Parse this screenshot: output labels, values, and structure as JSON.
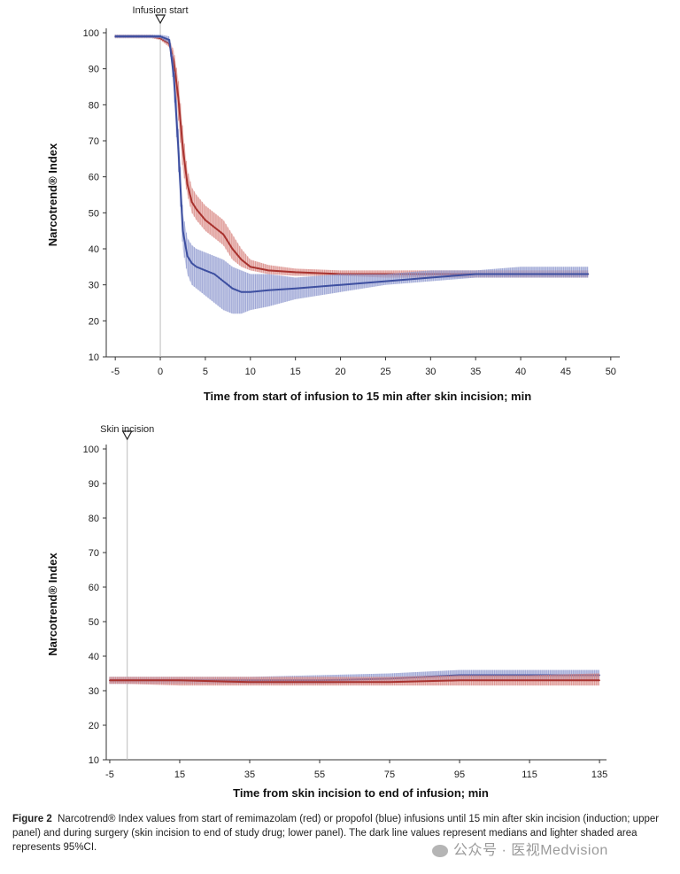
{
  "chart_data": [
    {
      "type": "line",
      "panel": "upper",
      "xlabel": "Time from start of infusion to 15 min after skin incision; min",
      "ylabel": "Narcotrend® Index",
      "xlim": [
        -6,
        51
      ],
      "ylim": [
        10,
        100
      ],
      "x_ticks": [
        -5,
        0,
        5,
        10,
        15,
        20,
        25,
        30,
        35,
        40,
        45,
        50
      ],
      "y_ticks": [
        10,
        20,
        30,
        40,
        50,
        60,
        70,
        80,
        90,
        100
      ],
      "marker": {
        "label": "Infusion start",
        "x": 0
      },
      "series": [
        {
          "color": "#a8322e",
          "band_color": "#d98883",
          "x": [
            -5,
            -1,
            0,
            1,
            1.5,
            2,
            2.5,
            3,
            3.5,
            4,
            5,
            6,
            7,
            8,
            9,
            10,
            12,
            15,
            20,
            25,
            30,
            35,
            40,
            45,
            47.5
          ],
          "y": [
            99,
            99,
            98.5,
            97,
            92,
            82,
            68,
            58,
            53,
            51,
            48,
            46,
            44,
            40,
            37,
            35,
            34,
            33.5,
            33,
            33,
            33,
            33,
            33,
            33,
            33
          ],
          "lower": [
            98.5,
            98.5,
            98,
            96,
            89,
            76,
            62,
            55,
            50,
            48,
            45,
            43,
            41,
            37,
            35,
            34,
            33,
            32.5,
            32.5,
            32,
            32,
            32,
            32,
            32,
            32
          ],
          "upper": [
            99.5,
            99.5,
            99,
            98,
            95,
            87,
            73,
            62,
            57,
            55,
            52,
            50,
            48,
            44,
            40,
            37,
            35.5,
            34.5,
            34,
            34,
            34,
            34,
            34,
            34,
            34
          ]
        },
        {
          "color": "#3d4fa0",
          "band_color": "#8e99cf",
          "x": [
            -5,
            -1,
            0,
            1,
            1.5,
            2,
            2.5,
            3,
            3.5,
            4,
            5,
            6,
            7,
            8,
            9,
            10,
            12,
            15,
            20,
            25,
            30,
            35,
            40,
            45,
            47.5
          ],
          "y": [
            99,
            99,
            99,
            98,
            88,
            68,
            45,
            38,
            36,
            35,
            34,
            33,
            31,
            29,
            28,
            28,
            28.5,
            29,
            30,
            31,
            32,
            33,
            33,
            33,
            33
          ],
          "lower": [
            98.5,
            98.5,
            98.5,
            97,
            84,
            62,
            40,
            33,
            30,
            29,
            27,
            25,
            23,
            22,
            22,
            23,
            24,
            26,
            28,
            30,
            31,
            32,
            32,
            32,
            32
          ],
          "upper": [
            99.5,
            99.5,
            99.5,
            99,
            92,
            74,
            50,
            43,
            41,
            40,
            39,
            38,
            37,
            35,
            34,
            33,
            33,
            32,
            33,
            33,
            34,
            34,
            35,
            35,
            35
          ]
        }
      ]
    },
    {
      "type": "line",
      "panel": "lower",
      "xlabel": "Time from skin incision to end of infusion; min",
      "ylabel": "Narcotrend® Index",
      "xlim": [
        -6,
        137
      ],
      "ylim": [
        10,
        100
      ],
      "x_ticks": [
        -5,
        15,
        35,
        55,
        75,
        95,
        115,
        135
      ],
      "y_ticks": [
        10,
        20,
        30,
        40,
        50,
        60,
        70,
        80,
        90,
        100
      ],
      "marker": {
        "label": "Skin incision",
        "x": 0
      },
      "series": [
        {
          "color": "#3d4fa0",
          "band_color": "#8e99cf",
          "x": [
            -5,
            0,
            15,
            35,
            55,
            75,
            85,
            95,
            115,
            135
          ],
          "y": [
            33,
            33,
            33,
            33,
            33,
            33.5,
            34,
            34.5,
            34.5,
            34.5
          ],
          "lower": [
            32,
            32,
            32,
            32,
            32,
            32.5,
            33,
            33,
            33,
            33
          ],
          "upper": [
            34,
            34,
            34,
            34,
            34.5,
            35,
            35.5,
            36,
            36,
            36
          ]
        },
        {
          "color": "#a8322e",
          "band_color": "#d98883",
          "x": [
            -5,
            0,
            15,
            35,
            55,
            75,
            95,
            115,
            135
          ],
          "y": [
            33,
            33,
            33,
            32.5,
            32.5,
            32.5,
            33,
            33,
            33
          ],
          "lower": [
            32,
            32,
            31.5,
            31.5,
            31.5,
            31.5,
            31.5,
            31.5,
            31.5
          ],
          "upper": [
            34,
            34,
            34,
            34,
            34,
            34,
            34.5,
            34.5,
            35
          ]
        }
      ]
    }
  ],
  "caption": {
    "label": "Figure 2",
    "text": "Narcotrend® Index values from start of remimazolam (red) or propofol (blue) infusions until 15  min after skin incision (induction; upper panel) and during surgery (skin incision to end of study drug; lower panel). The dark line values represent medians and lighter shaded area represents 95%CI."
  },
  "watermark": "公众号 · 医视Medvision"
}
